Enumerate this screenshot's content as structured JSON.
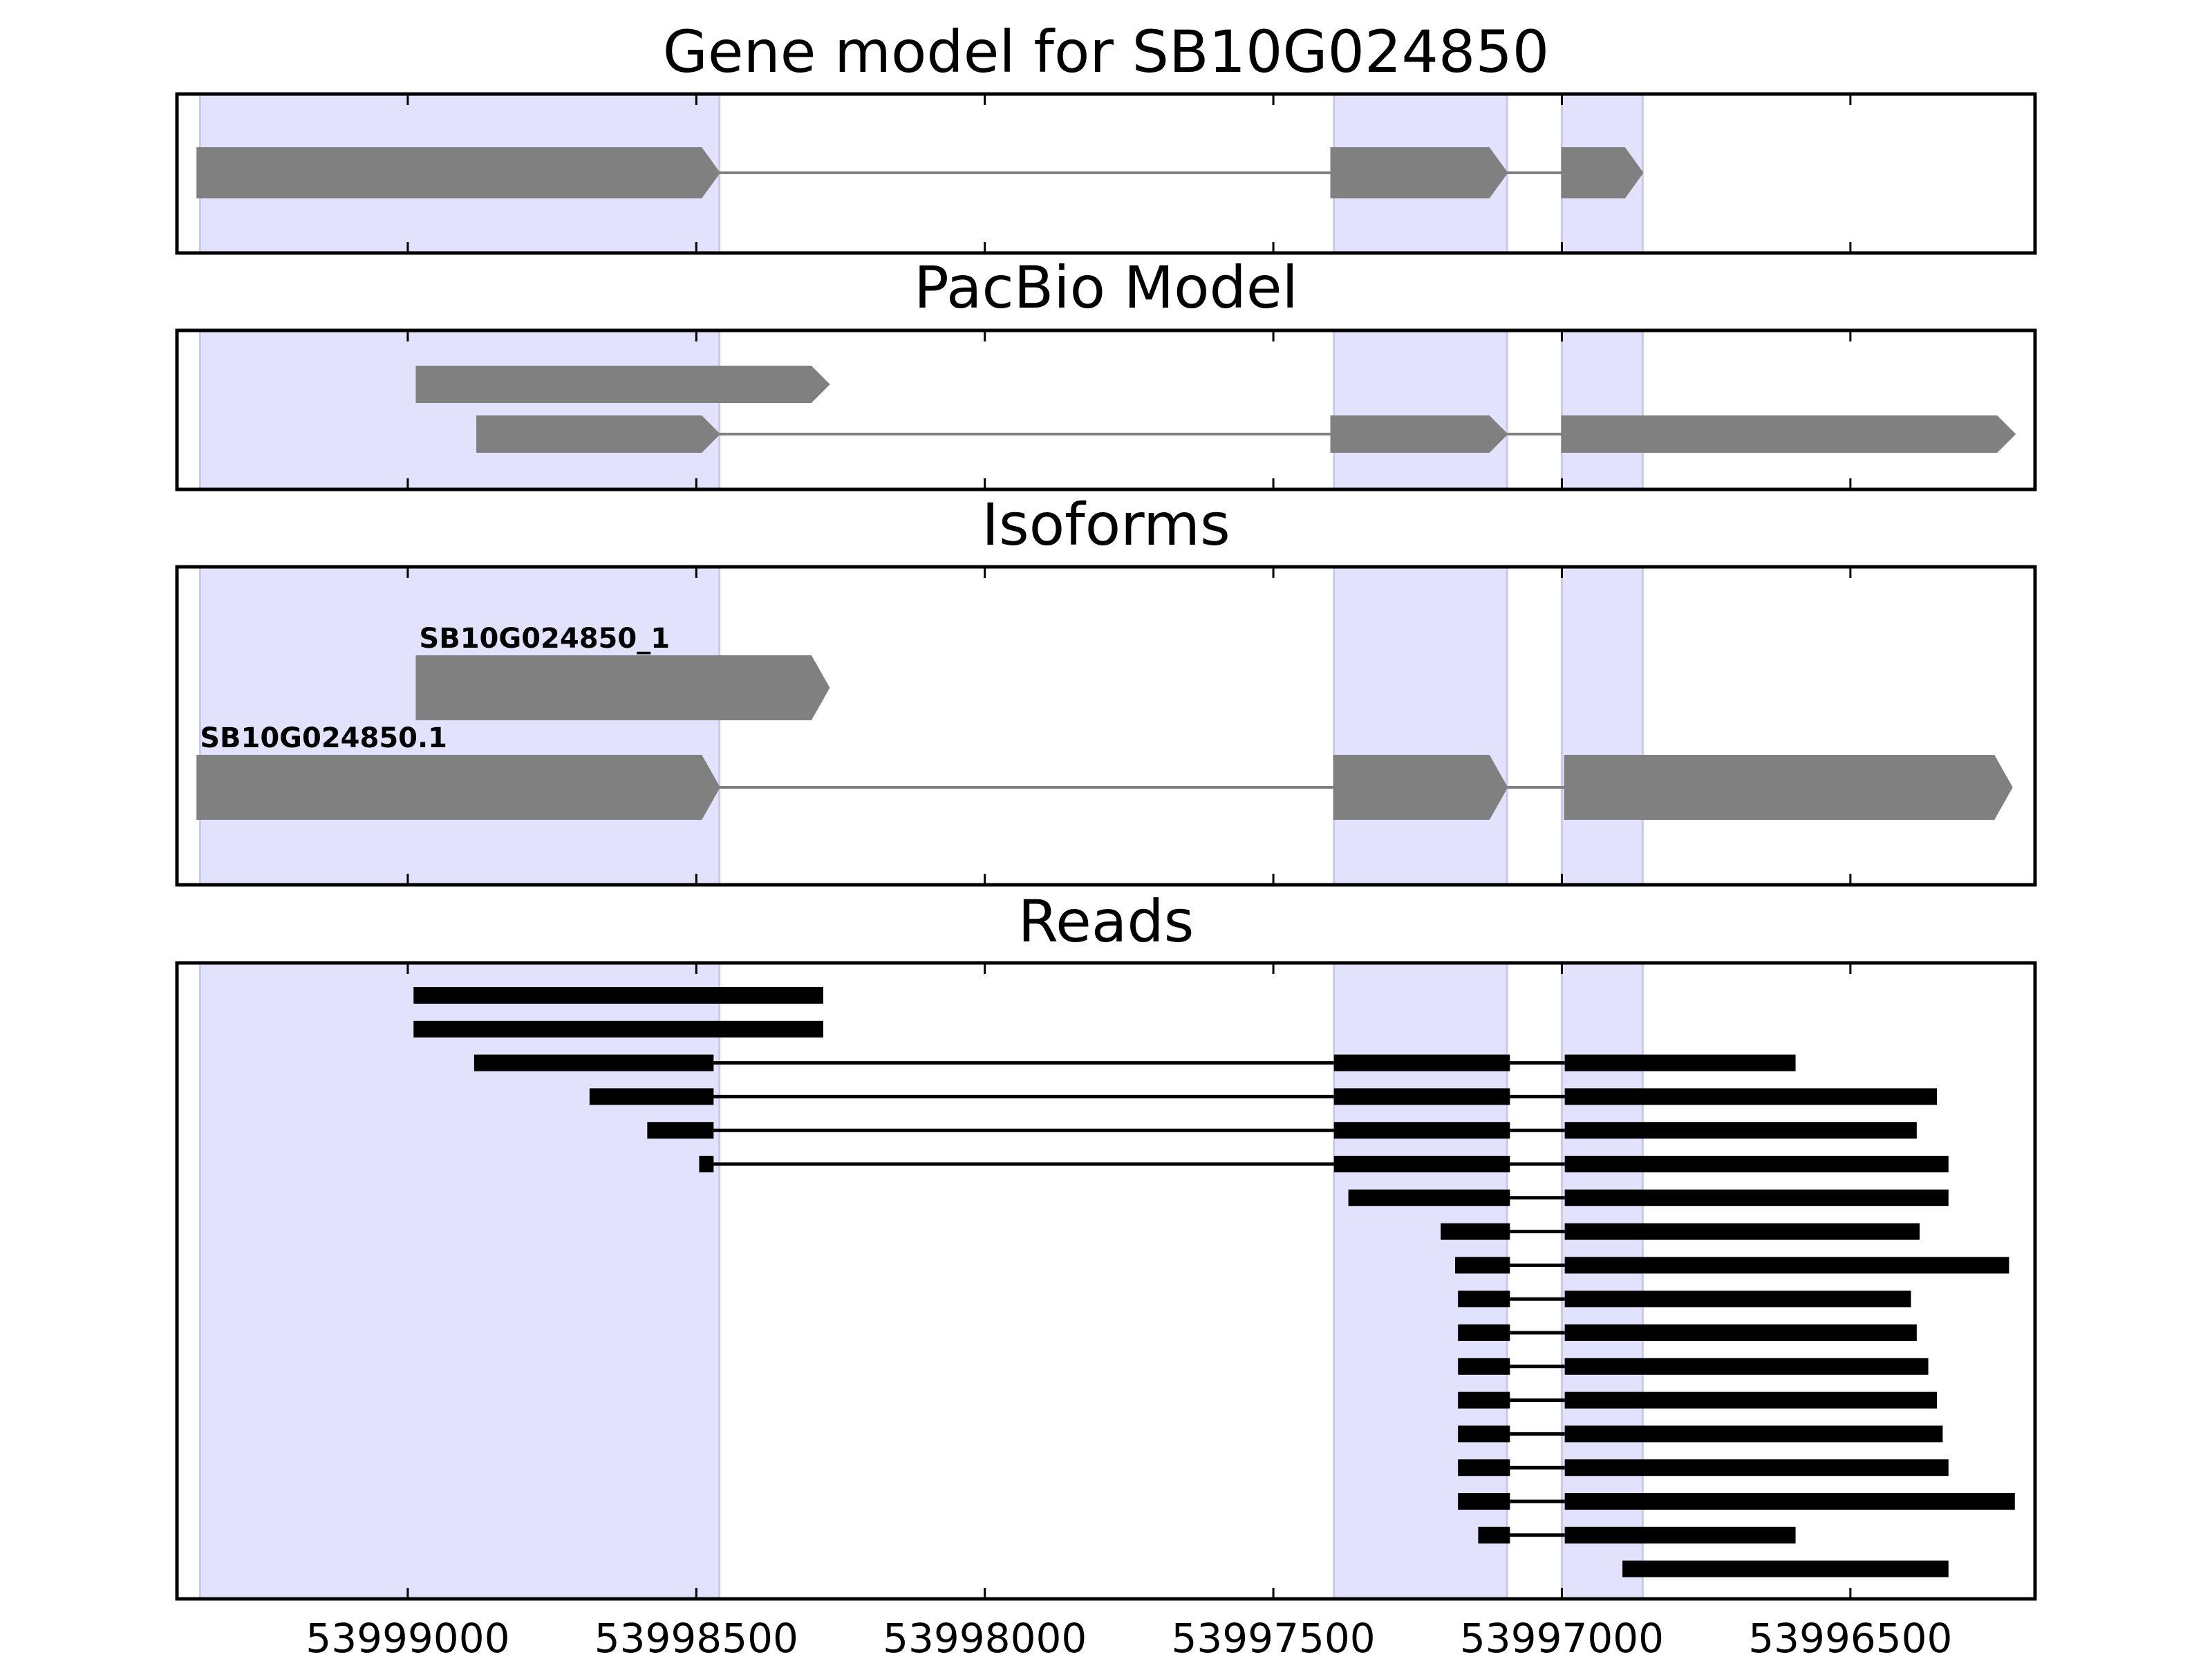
{
  "chart_data": {
    "type": "gene-structure-tracks",
    "title": "Gene model for SB10G024850",
    "x_axis": {
      "ticks": [
        53999000,
        53998500,
        53998000,
        53997500,
        53997000,
        53996500
      ],
      "tick_labels": [
        "53999000",
        "53998500",
        "53998000",
        "53997500",
        "53997000",
        "53996500"
      ],
      "xlim": [
        53999400,
        53996180
      ],
      "orientation": "descending"
    },
    "colors": {
      "exon_fill": "#808080",
      "intron_line": "#808080",
      "read_color": "#000000",
      "highlight": "#e2e2fc",
      "highlight_edge": "#c9c9ec",
      "frame": "#000000"
    },
    "highlight_regions": [
      {
        "start": 53999360,
        "end": 53998460
      },
      {
        "start": 53997395,
        "end": 53997095
      },
      {
        "start": 53997000,
        "end": 53996860
      }
    ],
    "panels": [
      {
        "key": "gene_model",
        "title": "Gene model for SB10G024850",
        "transcripts": [
          {
            "label": "",
            "exons": [
              [
                53999365,
                53998460
              ],
              [
                53997400,
                53997095
              ],
              [
                53997000,
                53996860
              ]
            ]
          }
        ]
      },
      {
        "key": "pacbio",
        "title": "PacBio Model",
        "transcripts": [
          {
            "label": "",
            "exons": [
              [
                53998985,
                53998270
              ]
            ]
          },
          {
            "label": "",
            "exons": [
              [
                53998880,
                53998460
              ],
              [
                53997400,
                53997095
              ],
              [
                53997000,
                53996215
              ]
            ]
          }
        ]
      },
      {
        "key": "isoforms",
        "title": "Isoforms",
        "transcripts": [
          {
            "label": "SB10G024850_1",
            "exons": [
              [
                53998985,
                53998270
              ]
            ]
          },
          {
            "label": "SB10G024850.1",
            "exons": [
              [
                53999365,
                53998460
              ],
              [
                53997395,
                53997095
              ],
              [
                53996995,
                53996220
              ]
            ]
          }
        ]
      },
      {
        "key": "reads",
        "title": "Reads",
        "reads": [
          [
            [
              53998990,
              53998280
            ]
          ],
          [
            [
              53998990,
              53998280
            ]
          ],
          [
            [
              53998885,
              53998470
            ],
            [
              53997395,
              53997090
            ],
            [
              53996995,
              53996595
            ]
          ],
          [
            [
              53998685,
              53998470
            ],
            [
              53997395,
              53997090
            ],
            [
              53996995,
              53996350
            ]
          ],
          [
            [
              53998585,
              53998470
            ],
            [
              53997395,
              53997090
            ],
            [
              53996995,
              53996385
            ]
          ],
          [
            [
              53998495,
              53998470
            ],
            [
              53997395,
              53997090
            ],
            [
              53996995,
              53996330
            ]
          ],
          [
            [
              53997370,
              53997090
            ],
            [
              53996995,
              53996330
            ]
          ],
          [
            [
              53997210,
              53997090
            ],
            [
              53996995,
              53996380
            ]
          ],
          [
            [
              53997185,
              53997090
            ],
            [
              53996995,
              53996225
            ]
          ],
          [
            [
              53997180,
              53997090
            ],
            [
              53996995,
              53996395
            ]
          ],
          [
            [
              53997180,
              53997090
            ],
            [
              53996995,
              53996385
            ]
          ],
          [
            [
              53997180,
              53997090
            ],
            [
              53996995,
              53996365
            ]
          ],
          [
            [
              53997180,
              53997090
            ],
            [
              53996995,
              53996350
            ]
          ],
          [
            [
              53997180,
              53997090
            ],
            [
              53996995,
              53996340
            ]
          ],
          [
            [
              53997180,
              53997090
            ],
            [
              53996995,
              53996330
            ]
          ],
          [
            [
              53997180,
              53997090
            ],
            [
              53996995,
              53996215
            ]
          ],
          [
            [
              53997145,
              53997090
            ],
            [
              53996995,
              53996595
            ]
          ],
          [
            [
              53996895,
              53996330
            ]
          ]
        ]
      }
    ]
  }
}
